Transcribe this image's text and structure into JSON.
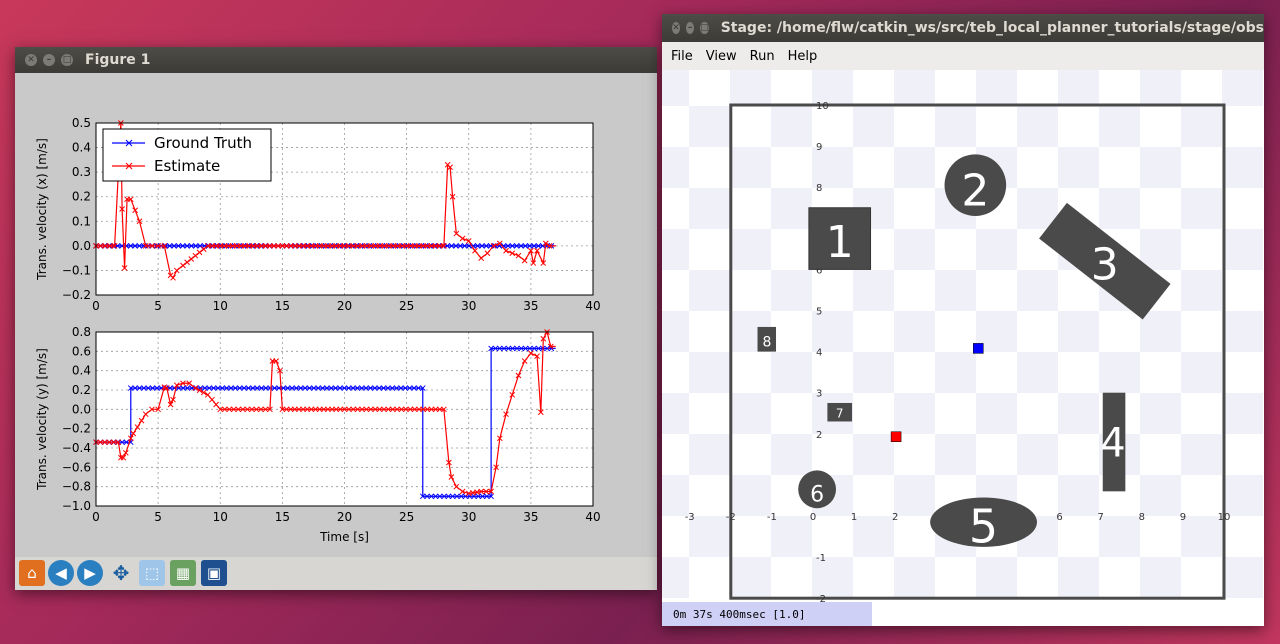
{
  "figure_window": {
    "title": "Figure 1",
    "legend": [
      "Ground Truth",
      "Estimate"
    ],
    "toolbar_icons": [
      "home-icon",
      "back-icon",
      "forward-icon",
      "pan-icon",
      "zoom-icon",
      "subplots-icon",
      "save-icon"
    ]
  },
  "chart_data": [
    {
      "type": "line",
      "ylabel": "Trans. velocity (x) [m/s]",
      "xlabel": "",
      "xlim": [
        0,
        40
      ],
      "ylim": [
        -0.2,
        0.5
      ],
      "xticks": [
        "0",
        "5",
        "10",
        "15",
        "20",
        "25",
        "30",
        "35",
        "40"
      ],
      "yticks": [
        "0.5",
        "0.4",
        "0.3",
        "0.2",
        "0.1",
        "0.0",
        "−0.1",
        "−0.2"
      ],
      "grid": true,
      "legend_position": "top-left",
      "series": [
        {
          "name": "Ground Truth",
          "color": "#0000ff",
          "x": [
            0,
            37
          ],
          "y": [
            0,
            0
          ]
        },
        {
          "name": "Estimate",
          "color": "#ff0000",
          "x": [
            0,
            1.5,
            2,
            2.1,
            2.3,
            2.5,
            2.8,
            3.5,
            4,
            4.5,
            5,
            5.5,
            6,
            6.2,
            6.5,
            7,
            9,
            10,
            12,
            15,
            18,
            20,
            25,
            28,
            28.3,
            28.5,
            28.7,
            29,
            29.5,
            30,
            30.5,
            31,
            31.5,
            32,
            32.5,
            33,
            33.5,
            34,
            34.5,
            35,
            35.2,
            35.5,
            36,
            36.2,
            36.5,
            37
          ],
          "y": [
            0,
            0,
            0.5,
            0.15,
            -0.09,
            0.19,
            0.19,
            0.1,
            0,
            0,
            0,
            0,
            -0.12,
            -0.13,
            -0.1,
            -0.08,
            0,
            0,
            0,
            0,
            0,
            0,
            0,
            0,
            0.33,
            0.32,
            0.2,
            0.05,
            0.03,
            0.02,
            -0.02,
            -0.05,
            -0.03,
            0,
            0.01,
            -0.02,
            -0.03,
            -0.04,
            -0.06,
            -0.02,
            -0.07,
            -0.02,
            -0.07,
            0.01,
            0,
            0
          ]
        }
      ]
    },
    {
      "type": "line",
      "ylabel": "Trans. velocity (y) [m/s]",
      "xlabel": "Time [s]",
      "xlim": [
        0,
        40
      ],
      "ylim": [
        -1.0,
        0.8
      ],
      "xticks": [
        "0",
        "5",
        "10",
        "15",
        "20",
        "25",
        "30",
        "35",
        "40"
      ],
      "yticks": [
        "0.8",
        "0.6",
        "0.4",
        "0.2",
        "0.0",
        "−0.2",
        "−0.4",
        "−0.6",
        "−0.8",
        "−1.0"
      ],
      "grid": true,
      "series": [
        {
          "name": "Ground Truth",
          "color": "#0000ff",
          "x": [
            0,
            2.8,
            2.8,
            26.3,
            26.3,
            31.8,
            31.8,
            37
          ],
          "y": [
            -0.34,
            -0.34,
            0.22,
            0.22,
            -0.9,
            -0.9,
            0.63,
            0.63
          ]
        },
        {
          "name": "Estimate",
          "color": "#ff0000",
          "x": [
            0,
            1.8,
            2,
            2.2,
            2.4,
            2.8,
            3,
            4,
            4.5,
            5,
            5.5,
            5.7,
            6,
            6.2,
            6.5,
            7,
            7.5,
            8,
            9,
            10,
            14,
            14.2,
            14.5,
            14.8,
            15,
            16,
            17,
            20,
            26,
            28,
            28.4,
            28.6,
            29,
            29.5,
            30,
            31,
            31.8,
            32.2,
            32.5,
            33,
            33.5,
            34,
            34.5,
            35,
            35.5,
            35.8,
            36,
            36.3,
            36.6,
            37
          ],
          "y": [
            -0.34,
            -0.34,
            -0.5,
            -0.5,
            -0.45,
            -0.3,
            -0.25,
            -0.05,
            0,
            0,
            0.23,
            0.22,
            0.05,
            0.1,
            0.25,
            0.27,
            0.27,
            0.22,
            0.15,
            0,
            0,
            0.5,
            0.5,
            0.4,
            0,
            0,
            0,
            0,
            0,
            0,
            -0.55,
            -0.7,
            -0.8,
            -0.85,
            -0.87,
            -0.85,
            -0.85,
            -0.6,
            -0.3,
            -0.05,
            0.15,
            0.35,
            0.5,
            0.58,
            0.55,
            -0.03,
            0.73,
            0.8,
            0.65,
            0.65
          ]
        }
      ]
    }
  ],
  "stage_window": {
    "title": "Stage: /home/flw/catkin_ws/src/teb_local_planner_tutorials/stage/obs",
    "menu": [
      "File",
      "View",
      "Run",
      "Help"
    ],
    "x_ticks": [
      "-3",
      "-2",
      "-1",
      "0",
      "1",
      "2",
      "3",
      "4",
      "5",
      "6",
      "7",
      "8",
      "9",
      "10"
    ],
    "y_ticks": [
      "10",
      "9",
      "8",
      "7",
      "6",
      "5",
      "4",
      "3",
      "2",
      "1",
      "-1",
      "-2"
    ],
    "obstacle_labels": [
      "1",
      "2",
      "3",
      "4",
      "5",
      "6",
      "7",
      "8"
    ],
    "status": "0m 37s 400msec [1.0]",
    "colors": {
      "robot_blue": "#0000ff",
      "robot_red": "#ff0000",
      "obstacle": "#4a4a4a"
    }
  }
}
